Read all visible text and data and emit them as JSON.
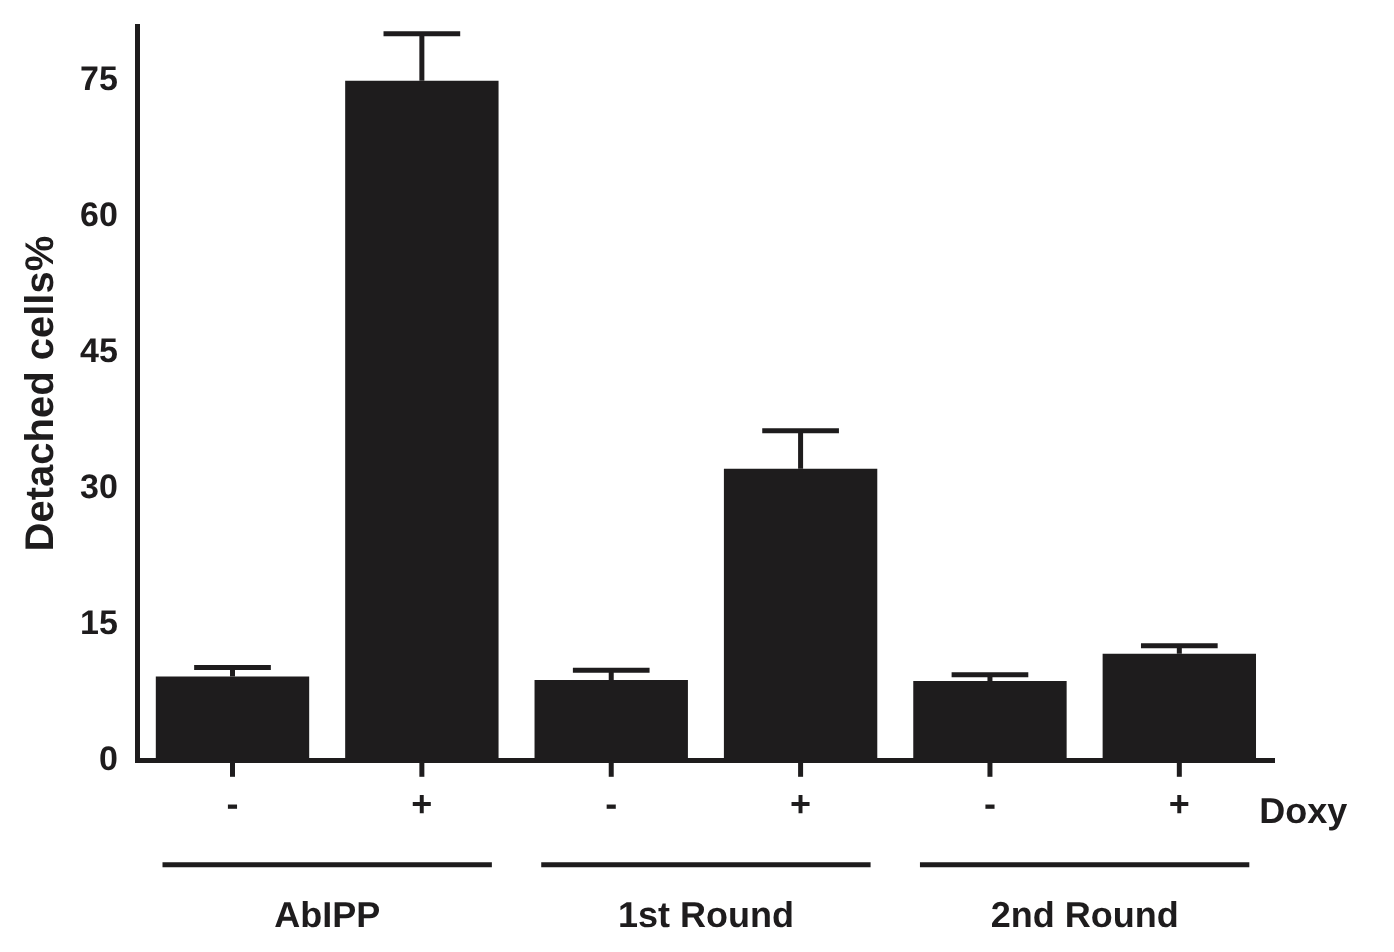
{
  "chart_data": {
    "type": "bar",
    "ylabel": "Detached cells%",
    "categories": [
      "-",
      "+",
      "-",
      "+",
      "-",
      "+"
    ],
    "series": [
      {
        "color": "#1e1c1d",
        "values": [
          9.3,
          75,
          8.9,
          32.2,
          8.8,
          11.8
        ],
        "errors": [
          [
            9.3,
            10.3
          ],
          [
            75,
            80.2
          ],
          [
            8.9,
            10.0
          ],
          [
            32.2,
            36.4
          ],
          [
            8.8,
            9.5
          ],
          [
            11.8,
            12.7
          ]
        ]
      }
    ],
    "ylim": [
      0,
      81
    ],
    "yticks": [
      0,
      15,
      30,
      45,
      60,
      75
    ],
    "grid": false,
    "legend": false,
    "annotations": [
      "AbIPP",
      "1st Round",
      "2nd Round",
      "Doxy"
    ]
  }
}
